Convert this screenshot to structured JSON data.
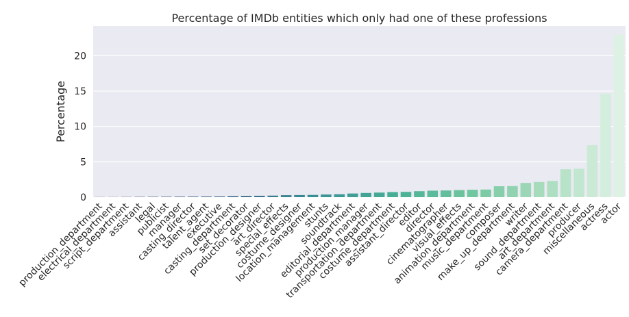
{
  "chart_data": {
    "type": "bar",
    "title": "Percentage of IMDb entities which only had one of these professions",
    "xlabel": "",
    "ylabel": "Percentage",
    "ylim": [
      0,
      24.2
    ],
    "yticks": [
      "0",
      "5",
      "10",
      "15",
      "20"
    ],
    "grid": true,
    "legend": "none",
    "categories": [
      "production_department",
      "electrical_department",
      "script_department",
      "assistant",
      "legal",
      "publicist",
      "manager",
      "casting_director",
      "talent_agent",
      "executive",
      "casting_department",
      "set_decorator",
      "production_designer",
      "art_director",
      "special_effects",
      "costume_designer",
      "location_management",
      "stunts",
      "soundtrack",
      "editorial_department",
      "production_manager",
      "transportation_department",
      "costume_department",
      "assistant_director",
      "editor",
      "director",
      "cinematographer",
      "visual_effects",
      "animation_department",
      "music_department",
      "composer",
      "make_up_department",
      "writer",
      "sound_department",
      "art_department",
      "camera_department",
      "producer",
      "miscellaneous",
      "actress",
      "actor"
    ],
    "values": [
      0.02,
      0.02,
      0.03,
      0.04,
      0.05,
      0.06,
      0.07,
      0.08,
      0.09,
      0.1,
      0.15,
      0.18,
      0.2,
      0.22,
      0.28,
      0.3,
      0.32,
      0.38,
      0.42,
      0.52,
      0.6,
      0.65,
      0.72,
      0.75,
      0.85,
      0.92,
      0.95,
      1.0,
      1.05,
      1.08,
      1.55,
      1.58,
      2.02,
      2.15,
      2.3,
      3.95,
      4.02,
      7.35,
      14.65,
      23.0
    ]
  }
}
